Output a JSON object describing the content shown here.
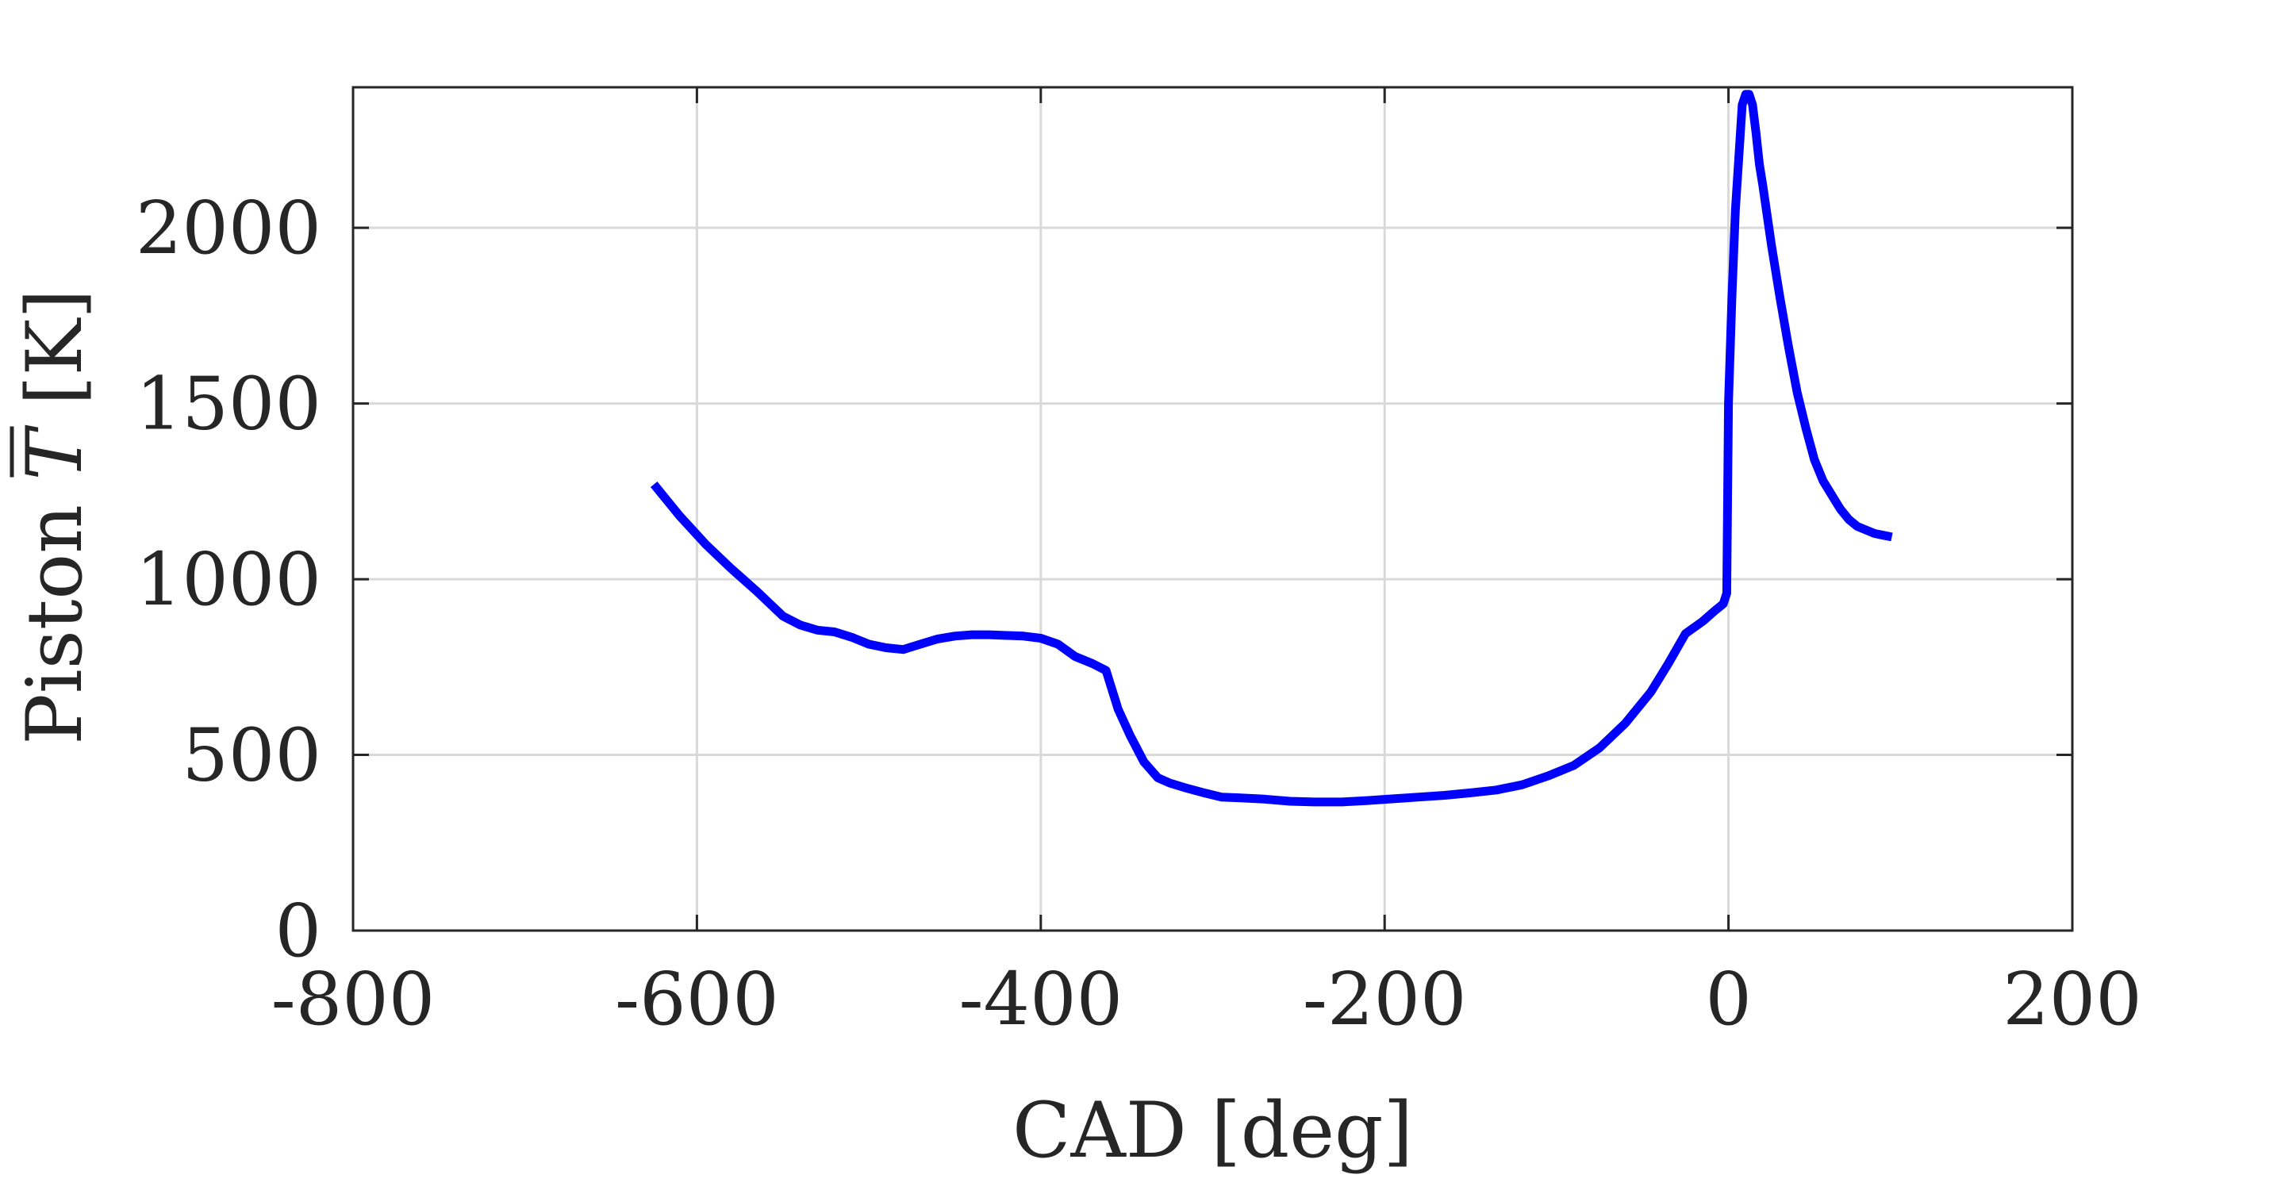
{
  "chart_data": {
    "type": "line",
    "title": "",
    "xlabel": "CAD [deg]",
    "ylabel": {
      "prefix": "Piston ",
      "symbol": "T",
      "suffix": " [K]"
    },
    "xlim": [
      -800,
      200
    ],
    "ylim": [
      0,
      2400
    ],
    "xticks": [
      -800,
      -600,
      -400,
      -200,
      0,
      200
    ],
    "yticks": [
      0,
      500,
      1000,
      1500,
      2000
    ],
    "xtick_labels": [
      "-800",
      "-600",
      "-400",
      "-200",
      "0",
      "200"
    ],
    "ytick_labels": [
      "0",
      "500",
      "1000",
      "1500",
      "2000"
    ],
    "grid": true,
    "line_color": "#0000ff",
    "axis_color": "#262626",
    "series": [
      {
        "x": [
          -625,
          -610,
          -595,
          -580,
          -565,
          -550,
          -540,
          -530,
          -520,
          -510,
          -500,
          -490,
          -480,
          -470,
          -460,
          -450,
          -440,
          -430,
          -420,
          -410,
          -400,
          -390,
          -380,
          -370,
          -362,
          -355,
          -348,
          -340,
          -332,
          -325,
          -315,
          -305,
          -295,
          -285,
          -270,
          -255,
          -240,
          -225,
          -210,
          -195,
          -180,
          -165,
          -150,
          -135,
          -120,
          -105,
          -90,
          -75,
          -60,
          -45,
          -35,
          -25,
          -15,
          -8,
          -3,
          -1,
          0,
          2,
          4,
          6,
          8,
          10,
          12,
          14,
          16,
          18,
          20,
          25,
          30,
          35,
          40,
          45,
          50,
          55,
          60,
          65,
          70,
          75,
          80,
          85,
          90,
          95
        ],
        "y": [
          1270,
          1180,
          1100,
          1030,
          965,
          895,
          870,
          855,
          850,
          835,
          815,
          805,
          800,
          815,
          830,
          838,
          842,
          842,
          840,
          838,
          832,
          815,
          780,
          760,
          740,
          630,
          555,
          480,
          435,
          420,
          405,
          392,
          380,
          378,
          374,
          368,
          366,
          366,
          370,
          375,
          380,
          385,
          392,
          400,
          415,
          440,
          470,
          520,
          590,
          680,
          760,
          845,
          880,
          910,
          930,
          960,
          1500,
          1800,
          2050,
          2200,
          2350,
          2380,
          2380,
          2350,
          2270,
          2180,
          2120,
          1950,
          1800,
          1660,
          1530,
          1430,
          1340,
          1280,
          1240,
          1200,
          1170,
          1150,
          1140,
          1130,
          1125,
          1120
        ]
      }
    ]
  }
}
